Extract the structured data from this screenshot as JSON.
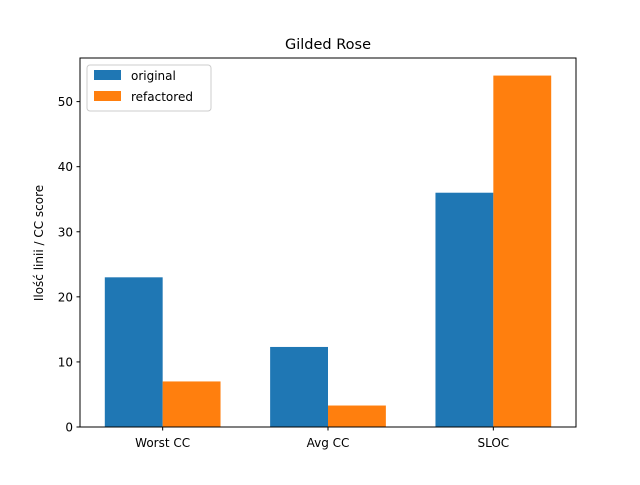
{
  "chart_data": {
    "type": "bar",
    "title": "Gilded Rose",
    "xlabel": "",
    "ylabel": "Ilość linii / CC score",
    "categories": [
      "Worst CC",
      "Avg CC",
      "SLOC"
    ],
    "series": [
      {
        "name": "original",
        "values": [
          23,
          12.3,
          36
        ],
        "color": "#1f77b4"
      },
      {
        "name": "refactored",
        "values": [
          7,
          3.3,
          54
        ],
        "color": "#ff7f0e"
      }
    ],
    "ylim": [
      0,
      56.7
    ],
    "yticks": [
      0,
      10,
      20,
      30,
      40,
      50
    ],
    "grid": false,
    "legend_position": "top-left"
  }
}
